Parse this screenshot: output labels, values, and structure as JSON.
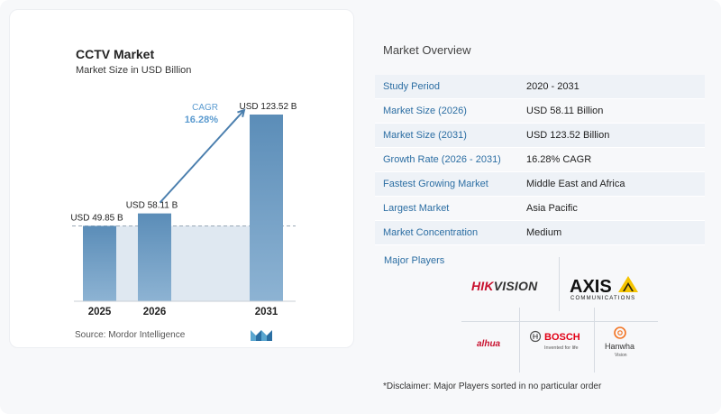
{
  "chart": {
    "title": "CCTV Market",
    "subtitle": "Market Size in USD Billion",
    "source": "Source:  Mordor Intelligence"
  },
  "chart_data": {
    "type": "bar",
    "categories": [
      "2025",
      "2026",
      "2031"
    ],
    "values": [
      49.85,
      58.11,
      123.52
    ],
    "data_labels": [
      "USD 49.85 B",
      "USD 58.11 B",
      "USD 123.52 B"
    ],
    "cagr_label": "CAGR",
    "cagr_value": "16.28%",
    "title": "CCTV Market",
    "subtitle": "Market Size in USD Billion",
    "xlabel": "",
    "ylabel": "",
    "colors": {
      "bar": "#5b8db8",
      "bar_light": "#8db3d3",
      "shade": "#dfe8f1",
      "arrow": "#4b7fae",
      "cagr": "#5b9bd0"
    }
  },
  "overview": {
    "title": "Market Overview",
    "rows": [
      {
        "label": "Study Period",
        "value": "2020 - 2031"
      },
      {
        "label": "Market Size (2026)",
        "value": "USD 58.11 Billion"
      },
      {
        "label": "Market Size (2031)",
        "value": "USD 123.52 Billion"
      },
      {
        "label": "Growth Rate (2026 - 2031)",
        "value": "16.28% CAGR"
      },
      {
        "label": "Fastest Growing Market",
        "value": "Middle East and Africa"
      },
      {
        "label": "Largest Market",
        "value": "Asia Pacific"
      },
      {
        "label": "Market Concentration",
        "value": "Medium"
      }
    ]
  },
  "players": {
    "title": "Major Players",
    "hikvision": {
      "part1": "HIK",
      "part2": "VISION"
    },
    "axis": {
      "name": "AXIS",
      "sub": "COMMUNICATIONS"
    },
    "dahua": "alhua",
    "bosch": {
      "name": "BOSCH",
      "tagline": "Invented for life"
    },
    "hanwha": {
      "name": "Hanwha",
      "sub": "Vision"
    }
  },
  "disclaimer": "*Disclaimer: Major Players sorted in no particular order",
  "colors": {
    "label_blue": "#2c6ea3",
    "hik_red": "#c8102e",
    "axis_yellow": "#f5c400",
    "bosch_red": "#e20015",
    "hanwha_orange": "#f37321"
  }
}
